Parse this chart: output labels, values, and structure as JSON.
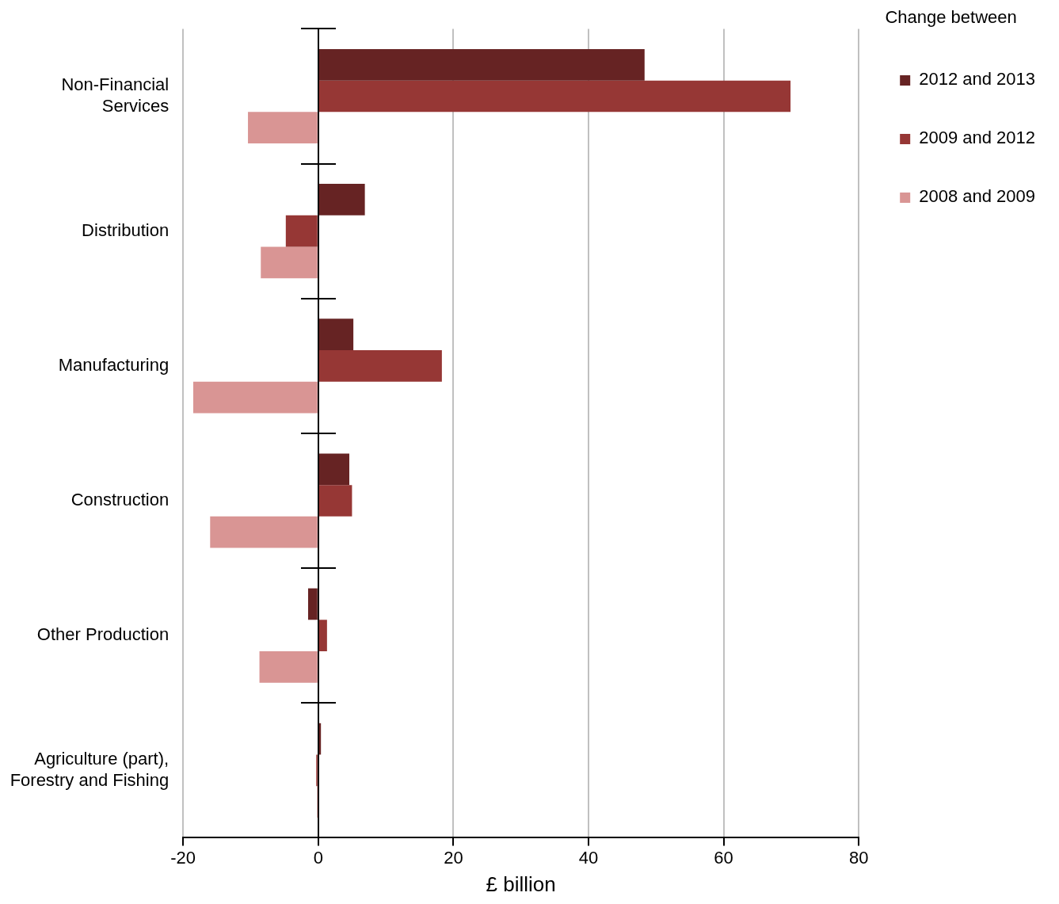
{
  "chart_data": {
    "type": "bar",
    "orientation": "horizontal",
    "xlabel": "£ billion",
    "legend_title": "Change between",
    "legend": "top right",
    "grid": "x",
    "categories": [
      "Non-Financial Services",
      "Distribution",
      "Manufacturing",
      "Construction",
      "Other Production",
      "Agriculture (part), Forestry and Fishing"
    ],
    "xlim": [
      -20,
      80
    ],
    "xticks": [
      -20,
      0,
      20,
      40,
      60,
      80
    ],
    "series": [
      {
        "name": "2012 and 2013",
        "color": "#662323",
        "values": [
          48.3,
          6.9,
          5.2,
          4.6,
          -1.5,
          0.4
        ]
      },
      {
        "name": "2009 and 2012",
        "color": "#963735",
        "values": [
          69.9,
          -4.8,
          18.3,
          5.0,
          1.3,
          -0.3
        ]
      },
      {
        "name": "2008 and 2009",
        "color": "#d99594",
        "values": [
          -10.4,
          -8.5,
          -18.5,
          -16.0,
          -8.7,
          -0.2
        ]
      }
    ]
  }
}
